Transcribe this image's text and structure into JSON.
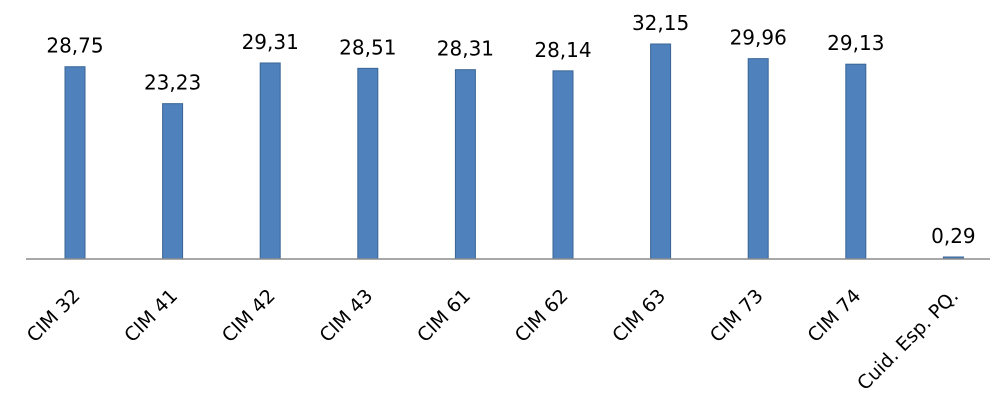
{
  "chart_data": {
    "type": "bar",
    "categories": [
      "CIM 32",
      "CIM 41",
      "CIM 42",
      "CIM 43",
      "CIM 61",
      "CIM 62",
      "CIM 63",
      "CIM 73",
      "CIM 74",
      "Cuid. Esp. PQ."
    ],
    "values": [
      28.75,
      23.23,
      29.31,
      28.51,
      28.31,
      28.14,
      32.15,
      29.96,
      29.13,
      0.29
    ],
    "value_labels": [
      "28,75",
      "23,23",
      "29,31",
      "28,51",
      "28,31",
      "28,14",
      "32,15",
      "29,96",
      "29,13",
      "0,29"
    ],
    "title": "",
    "xlabel": "",
    "ylabel": "",
    "ylim": [
      0,
      32.15
    ],
    "grid": false,
    "legend": "none",
    "bar_color": "#4f81bd"
  }
}
